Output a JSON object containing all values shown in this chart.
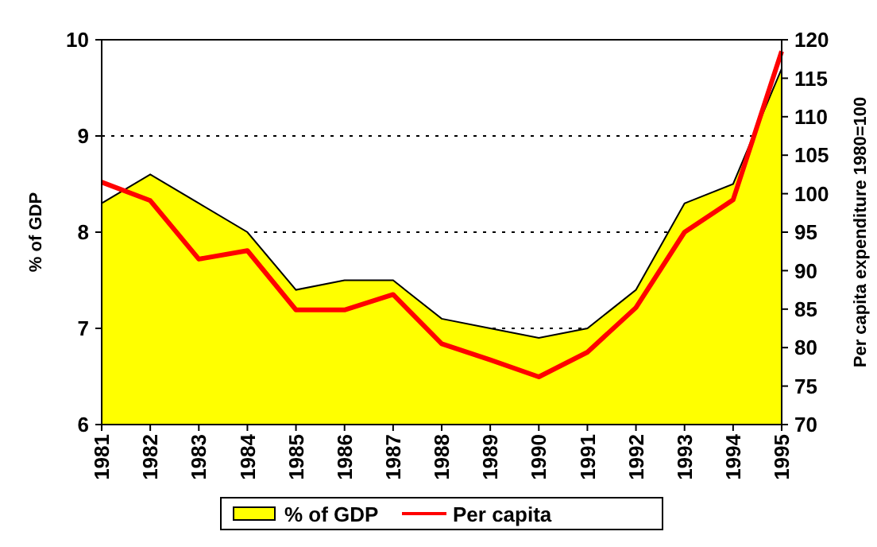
{
  "chart_data": {
    "type": "area",
    "categories": [
      "1981",
      "1982",
      "1983",
      "1984",
      "1985",
      "1986",
      "1987",
      "1988",
      "1989",
      "1990",
      "1991",
      "1992",
      "1993",
      "1994",
      "1995"
    ],
    "series": [
      {
        "name": "% of GDP",
        "color": "#ffff00",
        "values": [
          8.3,
          8.6,
          8.3,
          8.0,
          7.4,
          7.5,
          7.5,
          7.1,
          7.0,
          6.9,
          7.0,
          7.4,
          8.3,
          8.5,
          9.7
        ]
      },
      {
        "name": "Per capita",
        "type": "line",
        "axis": "y2",
        "color": "#ff0000",
        "values": [
          101.5,
          99.1,
          91.5,
          92.6,
          84.9,
          84.9,
          86.9,
          80.5,
          78.4,
          76.2,
          79.4,
          85.2,
          95.0,
          99.2,
          118.5
        ]
      }
    ],
    "ylabel": "% of GDP",
    "y2label": "Per capita expenditure 1980=100",
    "ylim": [
      6,
      10
    ],
    "yticks": [
      6,
      7,
      8,
      9,
      10
    ],
    "y2lim": [
      70,
      120
    ],
    "y2ticks": [
      70,
      75,
      80,
      85,
      90,
      95,
      100,
      105,
      110,
      115,
      120
    ],
    "grid": "y",
    "legend": "bottom",
    "marker": "none"
  }
}
